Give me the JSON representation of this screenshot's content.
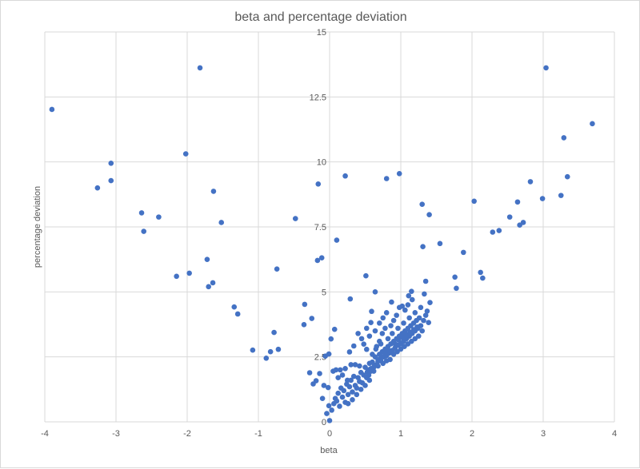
{
  "chart_data": {
    "type": "scatter",
    "title": "beta and percentage deviation",
    "xlabel": "beta",
    "ylabel": "percentage deviation",
    "xlim": [
      -4,
      4
    ],
    "ylim": [
      0,
      15
    ],
    "xticks": [
      "-4",
      "-3",
      "-2",
      "-1",
      "0",
      "1",
      "2",
      "3",
      "4"
    ],
    "yticks": [
      "0",
      "2.5",
      "5",
      "7.5",
      "10",
      "12.5",
      "15"
    ],
    "grid": true,
    "legend": "none",
    "marker_color": "#4472C4",
    "points": [
      [
        -3.9,
        12.02
      ],
      [
        -1.82,
        13.62
      ],
      [
        -3.07,
        9.95
      ],
      [
        -3.26,
        9.0
      ],
      [
        -3.07,
        9.28
      ],
      [
        -2.64,
        8.04
      ],
      [
        -2.61,
        7.33
      ],
      [
        -2.4,
        7.88
      ],
      [
        -2.02,
        10.31
      ],
      [
        -1.63,
        8.87
      ],
      [
        -1.52,
        7.67
      ],
      [
        -1.72,
        6.25
      ],
      [
        -2.15,
        5.6
      ],
      [
        -1.97,
        5.72
      ],
      [
        -1.64,
        5.35
      ],
      [
        -1.7,
        5.2
      ],
      [
        -1.34,
        4.42
      ],
      [
        -1.29,
        4.15
      ],
      [
        -1.08,
        2.76
      ],
      [
        -0.89,
        2.45
      ],
      [
        -0.83,
        2.7
      ],
      [
        -0.78,
        3.44
      ],
      [
        -0.72,
        2.79
      ],
      [
        -0.74,
        5.88
      ],
      [
        -0.48,
        7.82
      ],
      [
        -0.16,
        9.15
      ],
      [
        -0.17,
        6.21
      ],
      [
        -0.11,
        6.31
      ],
      [
        -0.35,
        4.52
      ],
      [
        -0.36,
        3.74
      ],
      [
        -0.25,
        3.98
      ],
      [
        0.1,
        6.99
      ],
      [
        0.22,
        9.46
      ],
      [
        0.8,
        9.36
      ],
      [
        0.98,
        9.55
      ],
      [
        1.3,
        8.37
      ],
      [
        1.4,
        7.97
      ],
      [
        1.31,
        6.74
      ],
      [
        1.55,
        6.86
      ],
      [
        1.35,
        5.41
      ],
      [
        1.76,
        5.57
      ],
      [
        1.78,
        5.14
      ],
      [
        1.88,
        6.52
      ],
      [
        2.03,
        8.49
      ],
      [
        2.12,
        5.75
      ],
      [
        2.15,
        5.53
      ],
      [
        2.29,
        7.3
      ],
      [
        2.38,
        7.36
      ],
      [
        2.53,
        7.88
      ],
      [
        2.64,
        8.46
      ],
      [
        2.67,
        7.57
      ],
      [
        2.72,
        7.67
      ],
      [
        2.82,
        9.24
      ],
      [
        2.99,
        8.59
      ],
      [
        3.04,
        13.62
      ],
      [
        3.25,
        8.71
      ],
      [
        3.29,
        10.93
      ],
      [
        3.34,
        9.43
      ],
      [
        3.69,
        11.47
      ],
      [
        0.29,
        4.73
      ],
      [
        0.51,
        5.62
      ],
      [
        0.64,
        5.0
      ],
      [
        0.07,
        3.56
      ],
      [
        0.02,
        3.19
      ],
      [
        -0.01,
        2.61
      ],
      [
        -0.06,
        2.53
      ],
      [
        -0.28,
        1.89
      ],
      [
        -0.14,
        1.86
      ],
      [
        -0.19,
        1.58
      ],
      [
        -0.23,
        1.46
      ],
      [
        -0.08,
        1.4
      ],
      [
        -0.02,
        1.32
      ],
      [
        -0.1,
        0.9
      ],
      [
        -0.01,
        0.62
      ],
      [
        -0.04,
        0.32
      ],
      [
        0.0,
        0.05
      ],
      [
        0.58,
        3.82
      ],
      [
        0.59,
        4.25
      ],
      [
        0.87,
        4.61
      ],
      [
        1.11,
        4.85
      ],
      [
        1.15,
        5.02
      ],
      [
        1.33,
        4.92
      ],
      [
        1.41,
        4.59
      ],
      [
        1.37,
        4.26
      ],
      [
        1.39,
        3.82
      ],
      [
        0.28,
        2.69
      ],
      [
        0.34,
        2.92
      ],
      [
        0.48,
        2.99
      ],
      [
        0.52,
        2.79
      ],
      [
        0.09,
        2.0
      ],
      [
        0.15,
        2.0
      ],
      [
        0.22,
        2.05
      ],
      [
        0.3,
        2.2
      ],
      [
        0.36,
        2.2
      ],
      [
        0.42,
        2.15
      ],
      [
        0.05,
        1.95
      ],
      [
        0.12,
        1.7
      ],
      [
        0.18,
        1.8
      ],
      [
        0.25,
        1.6
      ],
      [
        0.03,
        0.45
      ],
      [
        0.06,
        0.7
      ],
      [
        0.08,
        0.9
      ],
      [
        0.1,
        0.8
      ],
      [
        0.12,
        1.1
      ],
      [
        0.14,
        0.6
      ],
      [
        0.16,
        1.3
      ],
      [
        0.18,
        0.95
      ],
      [
        0.2,
        1.2
      ],
      [
        0.22,
        0.75
      ],
      [
        0.24,
        1.45
      ],
      [
        0.26,
        1.05
      ],
      [
        0.28,
        1.35
      ],
      [
        0.3,
        1.6
      ],
      [
        0.32,
        1.15
      ],
      [
        0.34,
        1.75
      ],
      [
        0.36,
        1.4
      ],
      [
        0.38,
        1.3
      ],
      [
        0.4,
        1.7
      ],
      [
        0.42,
        1.55
      ],
      [
        0.44,
        1.9
      ],
      [
        0.46,
        1.5
      ],
      [
        0.48,
        1.8
      ],
      [
        0.5,
        2.1
      ],
      [
        0.52,
        1.7
      ],
      [
        0.54,
        2.0
      ],
      [
        0.56,
        2.25
      ],
      [
        0.58,
        1.95
      ],
      [
        0.6,
        2.3
      ],
      [
        0.62,
        2.1
      ],
      [
        0.64,
        2.5
      ],
      [
        0.66,
        2.2
      ],
      [
        0.68,
        2.4
      ],
      [
        0.7,
        2.6
      ],
      [
        0.72,
        2.35
      ],
      [
        0.74,
        2.7
      ],
      [
        0.76,
        2.5
      ],
      [
        0.78,
        2.8
      ],
      [
        0.8,
        2.55
      ],
      [
        0.82,
        2.9
      ],
      [
        0.84,
        2.65
      ],
      [
        0.86,
        3.0
      ],
      [
        0.88,
        2.75
      ],
      [
        0.9,
        3.1
      ],
      [
        0.92,
        2.85
      ],
      [
        0.94,
        3.2
      ],
      [
        0.96,
        2.95
      ],
      [
        0.98,
        3.3
      ],
      [
        1.0,
        3.0
      ],
      [
        1.02,
        3.4
      ],
      [
        1.04,
        3.1
      ],
      [
        1.06,
        3.5
      ],
      [
        1.08,
        3.2
      ],
      [
        1.1,
        3.6
      ],
      [
        1.12,
        3.3
      ],
      [
        1.14,
        3.7
      ],
      [
        1.16,
        3.4
      ],
      [
        1.18,
        3.8
      ],
      [
        1.2,
        3.5
      ],
      [
        1.22,
        3.9
      ],
      [
        1.24,
        3.6
      ],
      [
        1.26,
        4.0
      ],
      [
        1.28,
        3.7
      ],
      [
        1.3,
        3.5
      ],
      [
        1.32,
        3.9
      ],
      [
        1.35,
        4.1
      ],
      [
        0.6,
        2.6
      ],
      [
        0.66,
        2.9
      ],
      [
        0.7,
        3.1
      ],
      [
        0.74,
        3.4
      ],
      [
        0.78,
        3.6
      ],
      [
        0.82,
        3.2
      ],
      [
        0.86,
        3.7
      ],
      [
        0.9,
        3.9
      ],
      [
        0.94,
        4.1
      ],
      [
        0.98,
        4.4
      ],
      [
        1.02,
        4.45
      ],
      [
        1.06,
        4.3
      ],
      [
        1.1,
        4.5
      ],
      [
        1.16,
        4.7
      ],
      [
        0.75,
        4.0
      ],
      [
        0.8,
        4.2
      ],
      [
        0.7,
        3.8
      ],
      [
        0.64,
        3.5
      ],
      [
        0.56,
        3.3
      ],
      [
        0.52,
        3.6
      ],
      [
        0.45,
        3.2
      ],
      [
        0.4,
        3.4
      ],
      [
        0.85,
        2.4
      ],
      [
        0.9,
        2.6
      ],
      [
        0.95,
        2.7
      ],
      [
        1.0,
        2.8
      ],
      [
        1.05,
        2.9
      ],
      [
        1.1,
        3.0
      ],
      [
        1.15,
        3.1
      ],
      [
        1.2,
        3.2
      ],
      [
        1.25,
        3.3
      ],
      [
        0.55,
        1.8
      ],
      [
        0.62,
        1.95
      ],
      [
        0.68,
        2.15
      ],
      [
        0.75,
        2.25
      ],
      [
        0.8,
        2.35
      ],
      [
        0.44,
        1.25
      ],
      [
        0.38,
        1.05
      ],
      [
        0.32,
        0.85
      ],
      [
        0.26,
        0.7
      ],
      [
        0.5,
        1.4
      ],
      [
        0.56,
        1.6
      ],
      [
        0.65,
        2.8
      ],
      [
        0.72,
        3.0
      ],
      [
        0.88,
        3.4
      ],
      [
        0.96,
        3.6
      ],
      [
        1.04,
        3.8
      ],
      [
        1.12,
        4.0
      ],
      [
        1.2,
        4.2
      ],
      [
        1.28,
        4.4
      ],
      [
        0.92,
        3.0
      ],
      [
        0.97,
        3.15
      ],
      [
        1.03,
        3.25
      ],
      [
        1.08,
        3.35
      ],
      [
        1.13,
        3.45
      ],
      [
        1.18,
        3.55
      ],
      [
        1.23,
        3.65
      ],
      [
        0.83,
        2.75
      ],
      [
        0.78,
        2.62
      ],
      [
        0.73,
        2.5
      ],
      [
        0.68,
        2.33
      ],
      [
        0.63,
        2.18
      ],
      [
        0.58,
        2.05
      ],
      [
        0.53,
        1.92
      ]
    ]
  }
}
